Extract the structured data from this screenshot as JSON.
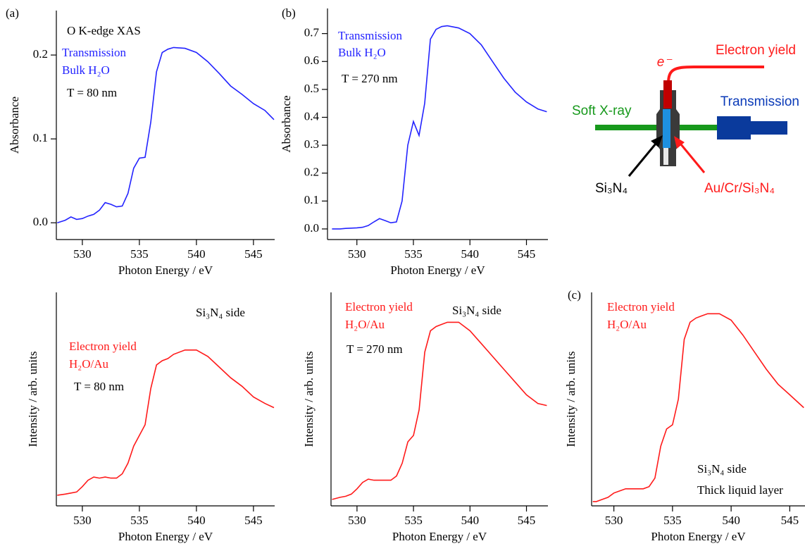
{
  "chart_data": [
    {
      "type": "line",
      "panel_label": "(a)",
      "xlabel": "Photon Energy / eV",
      "ylabel": "Absorbance",
      "color": "#2323ff",
      "x": [
        527.8,
        528.5,
        529,
        529.5,
        530,
        530.5,
        531,
        531.5,
        532,
        532.5,
        533,
        533.5,
        534,
        534.5,
        535,
        535.5,
        536,
        536.5,
        537,
        537.5,
        538,
        539,
        540,
        541,
        542,
        543,
        544,
        545,
        546,
        546.8
      ],
      "values": [
        0,
        0.003,
        0.007,
        0.004,
        0.005,
        0.008,
        0.01,
        0.015,
        0.024,
        0.022,
        0.019,
        0.02,
        0.035,
        0.065,
        0.077,
        0.078,
        0.12,
        0.18,
        0.203,
        0.207,
        0.209,
        0.208,
        0.203,
        0.192,
        0.178,
        0.163,
        0.153,
        0.142,
        0.134,
        0.123
      ],
      "xlim": [
        527.72,
        546.86
      ],
      "ylim": [
        -0.02,
        0.253
      ],
      "xticks": [
        530,
        535,
        540,
        545
      ],
      "yticks": [
        {
          "value": 0,
          "label": "0.0"
        },
        0.1,
        0.2
      ],
      "annotations": [
        {
          "text": "O K-edge XAS",
          "color": "#000000"
        },
        {
          "text": "Transmission",
          "color": "#2323ff"
        },
        {
          "text": "Bulk H₂O",
          "color": "#2323ff"
        },
        {
          "text": "T = 80 nm",
          "color": "#000000"
        }
      ]
    },
    {
      "type": "line",
      "panel_label": "(b)",
      "xlabel": "Photon Energy / eV",
      "ylabel": "Absorbance",
      "color": "#2323ff",
      "x": [
        527.8,
        528.5,
        529,
        529.5,
        530,
        530.5,
        531,
        531.5,
        532,
        532.5,
        533,
        533.5,
        534,
        534.5,
        535,
        535.5,
        536,
        536.5,
        537,
        537.5,
        538,
        539,
        540,
        541,
        542,
        543,
        544,
        545,
        546,
        546.8
      ],
      "values": [
        0,
        0,
        0.002,
        0.003,
        0.004,
        0.006,
        0.012,
        0.025,
        0.037,
        0.03,
        0.022,
        0.025,
        0.1,
        0.3,
        0.385,
        0.335,
        0.45,
        0.68,
        0.715,
        0.725,
        0.728,
        0.72,
        0.7,
        0.66,
        0.6,
        0.54,
        0.49,
        0.455,
        0.43,
        0.42
      ],
      "xlim": [
        527.4,
        546.9
      ],
      "ylim": [
        -0.038,
        0.79
      ],
      "xticks": [
        530,
        535,
        540,
        545
      ],
      "yticks": [
        {
          "value": 0,
          "label": "0.0"
        },
        0.1,
        0.2,
        0.3,
        0.4,
        0.5,
        0.6,
        0.7
      ],
      "annotations": [
        {
          "text": "Transmission",
          "color": "#2323ff"
        },
        {
          "text": "Bulk H₂O",
          "color": "#2323ff"
        },
        {
          "text": "T = 270 nm",
          "color": "#000000"
        }
      ]
    },
    {
      "type": "line",
      "xlabel": "Photon Energy / eV",
      "ylabel": "Intensity / arb. units",
      "color": "#ff1a1a",
      "x": [
        527.8,
        528.5,
        529,
        529.5,
        530,
        530.5,
        531,
        531.5,
        532,
        532.5,
        533,
        533.5,
        534,
        534.5,
        535,
        535.5,
        536,
        536.5,
        537,
        537.5,
        538,
        539,
        540,
        541,
        542,
        543,
        544,
        545,
        546,
        546.8
      ],
      "values": [
        0.05,
        0.055,
        0.06,
        0.065,
        0.09,
        0.12,
        0.135,
        0.13,
        0.135,
        0.13,
        0.13,
        0.15,
        0.2,
        0.28,
        0.33,
        0.38,
        0.55,
        0.66,
        0.68,
        0.69,
        0.71,
        0.73,
        0.73,
        0.7,
        0.65,
        0.6,
        0.56,
        0.51,
        0.48,
        0.46
      ],
      "xlim": [
        527.72,
        546.86
      ],
      "ylim": [
        0,
        1
      ],
      "xticks": [
        530,
        535,
        540,
        545
      ],
      "annotations": [
        {
          "text": "Si₃N₄ side",
          "color": "#000000"
        },
        {
          "text": "Electron yield",
          "color": "#ff1a1a"
        },
        {
          "text": "H₂O/Au",
          "color": "#ff1a1a"
        },
        {
          "text": "T = 80 nm",
          "color": "#000000"
        }
      ]
    },
    {
      "type": "line",
      "xlabel": "Photon Energy / eV",
      "ylabel": "Intensity / arb. units",
      "color": "#ff1a1a",
      "x": [
        527.8,
        528.5,
        529,
        529.5,
        530,
        530.5,
        531,
        531.5,
        532,
        532.5,
        533,
        533.5,
        534,
        534.5,
        535,
        535.5,
        536,
        536.5,
        537,
        537.5,
        538,
        539,
        540,
        541,
        542,
        543,
        544,
        545,
        546,
        546.8
      ],
      "values": [
        0.03,
        0.04,
        0.045,
        0.055,
        0.08,
        0.11,
        0.125,
        0.12,
        0.12,
        0.12,
        0.12,
        0.14,
        0.2,
        0.3,
        0.33,
        0.45,
        0.72,
        0.82,
        0.84,
        0.85,
        0.86,
        0.86,
        0.82,
        0.76,
        0.7,
        0.64,
        0.58,
        0.52,
        0.48,
        0.47
      ],
      "xlim": [
        527.7,
        546.9
      ],
      "ylim": [
        0,
        1
      ],
      "xticks": [
        530,
        535,
        540,
        545
      ],
      "annotations": [
        {
          "text": "Electron yield",
          "color": "#ff1a1a"
        },
        {
          "text": "H₂O/Au",
          "color": "#ff1a1a"
        },
        {
          "text": "Si₃N₄ side",
          "color": "#000000"
        },
        {
          "text": "T = 270 nm",
          "color": "#000000"
        }
      ]
    },
    {
      "type": "line",
      "panel_label": "(c)",
      "xlabel": "Photon Energy / eV",
      "ylabel": "Intensity / arb. units",
      "color": "#ff1a1a",
      "x": [
        528.2,
        528.5,
        529,
        529.5,
        530,
        530.5,
        531,
        531.5,
        532,
        532.5,
        533,
        533.5,
        534,
        534.5,
        535,
        535.5,
        536,
        536.5,
        537,
        537.5,
        538,
        539,
        540,
        541,
        542,
        543,
        544,
        545,
        546,
        546.2
      ],
      "values": [
        0.02,
        0.02,
        0.03,
        0.04,
        0.06,
        0.07,
        0.08,
        0.08,
        0.08,
        0.08,
        0.09,
        0.13,
        0.28,
        0.36,
        0.38,
        0.5,
        0.78,
        0.86,
        0.88,
        0.89,
        0.9,
        0.9,
        0.87,
        0.8,
        0.72,
        0.64,
        0.57,
        0.52,
        0.47,
        0.46
      ],
      "xlim": [
        528.1,
        546.3
      ],
      "ylim": [
        0,
        1
      ],
      "xticks": [
        530,
        535,
        540,
        545
      ],
      "annotations": [
        {
          "text": "Electron yield",
          "color": "#ff1a1a"
        },
        {
          "text": "H₂O/Au",
          "color": "#ff1a1a"
        },
        {
          "text": "Si₃N₄ side",
          "color": "#000000"
        },
        {
          "text": "Thick liquid layer",
          "color": "#000000"
        }
      ]
    }
  ],
  "diagram": {
    "electron_label": "e⁻",
    "electron_yield": "Electron yield",
    "transmission": "Transmission",
    "soft_xray": "Soft X-ray",
    "window": "Si₃N₄",
    "electrode": "Au/Cr/Si₃N₄"
  }
}
